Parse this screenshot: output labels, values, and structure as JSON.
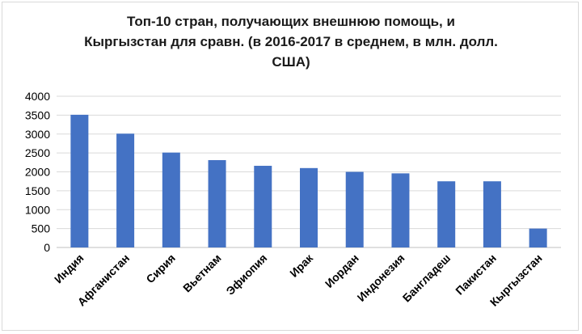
{
  "chart_data": {
    "type": "bar",
    "title_lines": [
      "Топ-10 стран, получающих внешнюю помощь, и",
      "Кыргызстан для сравн. (в 2016-2017 в среднем, в млн. долл.",
      "США)"
    ],
    "categories": [
      "Индия",
      "Афганистан",
      "Сирия",
      "Вьетнам",
      "Эфиопия",
      "Ирак",
      "Иордан",
      "Индонезия",
      "Бангладеш",
      "Пакистан",
      "Кыргызстан"
    ],
    "values": [
      3510,
      3010,
      2510,
      2310,
      2160,
      2100,
      2000,
      1960,
      1750,
      1750,
      500
    ],
    "yticks": [
      0,
      500,
      1000,
      1500,
      2000,
      2500,
      3000,
      3500,
      4000
    ],
    "ylim": [
      0,
      4000
    ],
    "grid": true,
    "bar_color": "#4472c4"
  }
}
